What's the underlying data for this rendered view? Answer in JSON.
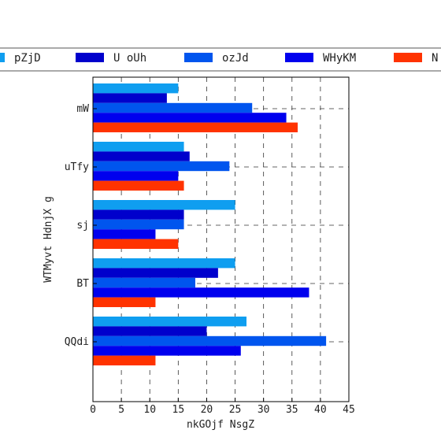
{
  "chart_data": {
    "type": "bar",
    "orientation": "horizontal",
    "categories": [
      "mW",
      "uTfy",
      "sj",
      "BT",
      "QQdi"
    ],
    "series": [
      {
        "name": "pZjD",
        "color": "#0f9ef0",
        "values": [
          15,
          16,
          25,
          25,
          27
        ]
      },
      {
        "name": "U oUh",
        "color": "#0000cc",
        "values": [
          13,
          17,
          16,
          22,
          20
        ]
      },
      {
        "name": "ozJd",
        "color": "#0055ee",
        "values": [
          28,
          24,
          16,
          18,
          41
        ]
      },
      {
        "name": "WHyKM",
        "color": "#0000ee",
        "values": [
          34,
          15,
          11,
          38,
          26
        ]
      },
      {
        "name": "N",
        "color": "#ff3300",
        "values": [
          36,
          16,
          15,
          11,
          11
        ]
      }
    ],
    "xlabel": "nkGOjf NsgZ",
    "ylabel": "WTMyvt HdnjX g",
    "xlim": [
      0,
      45
    ],
    "xticks": [
      "0",
      "5",
      "10",
      "15",
      "20",
      "25",
      "30",
      "35",
      "40",
      "45"
    ],
    "grid": true,
    "legend_position": "top"
  }
}
